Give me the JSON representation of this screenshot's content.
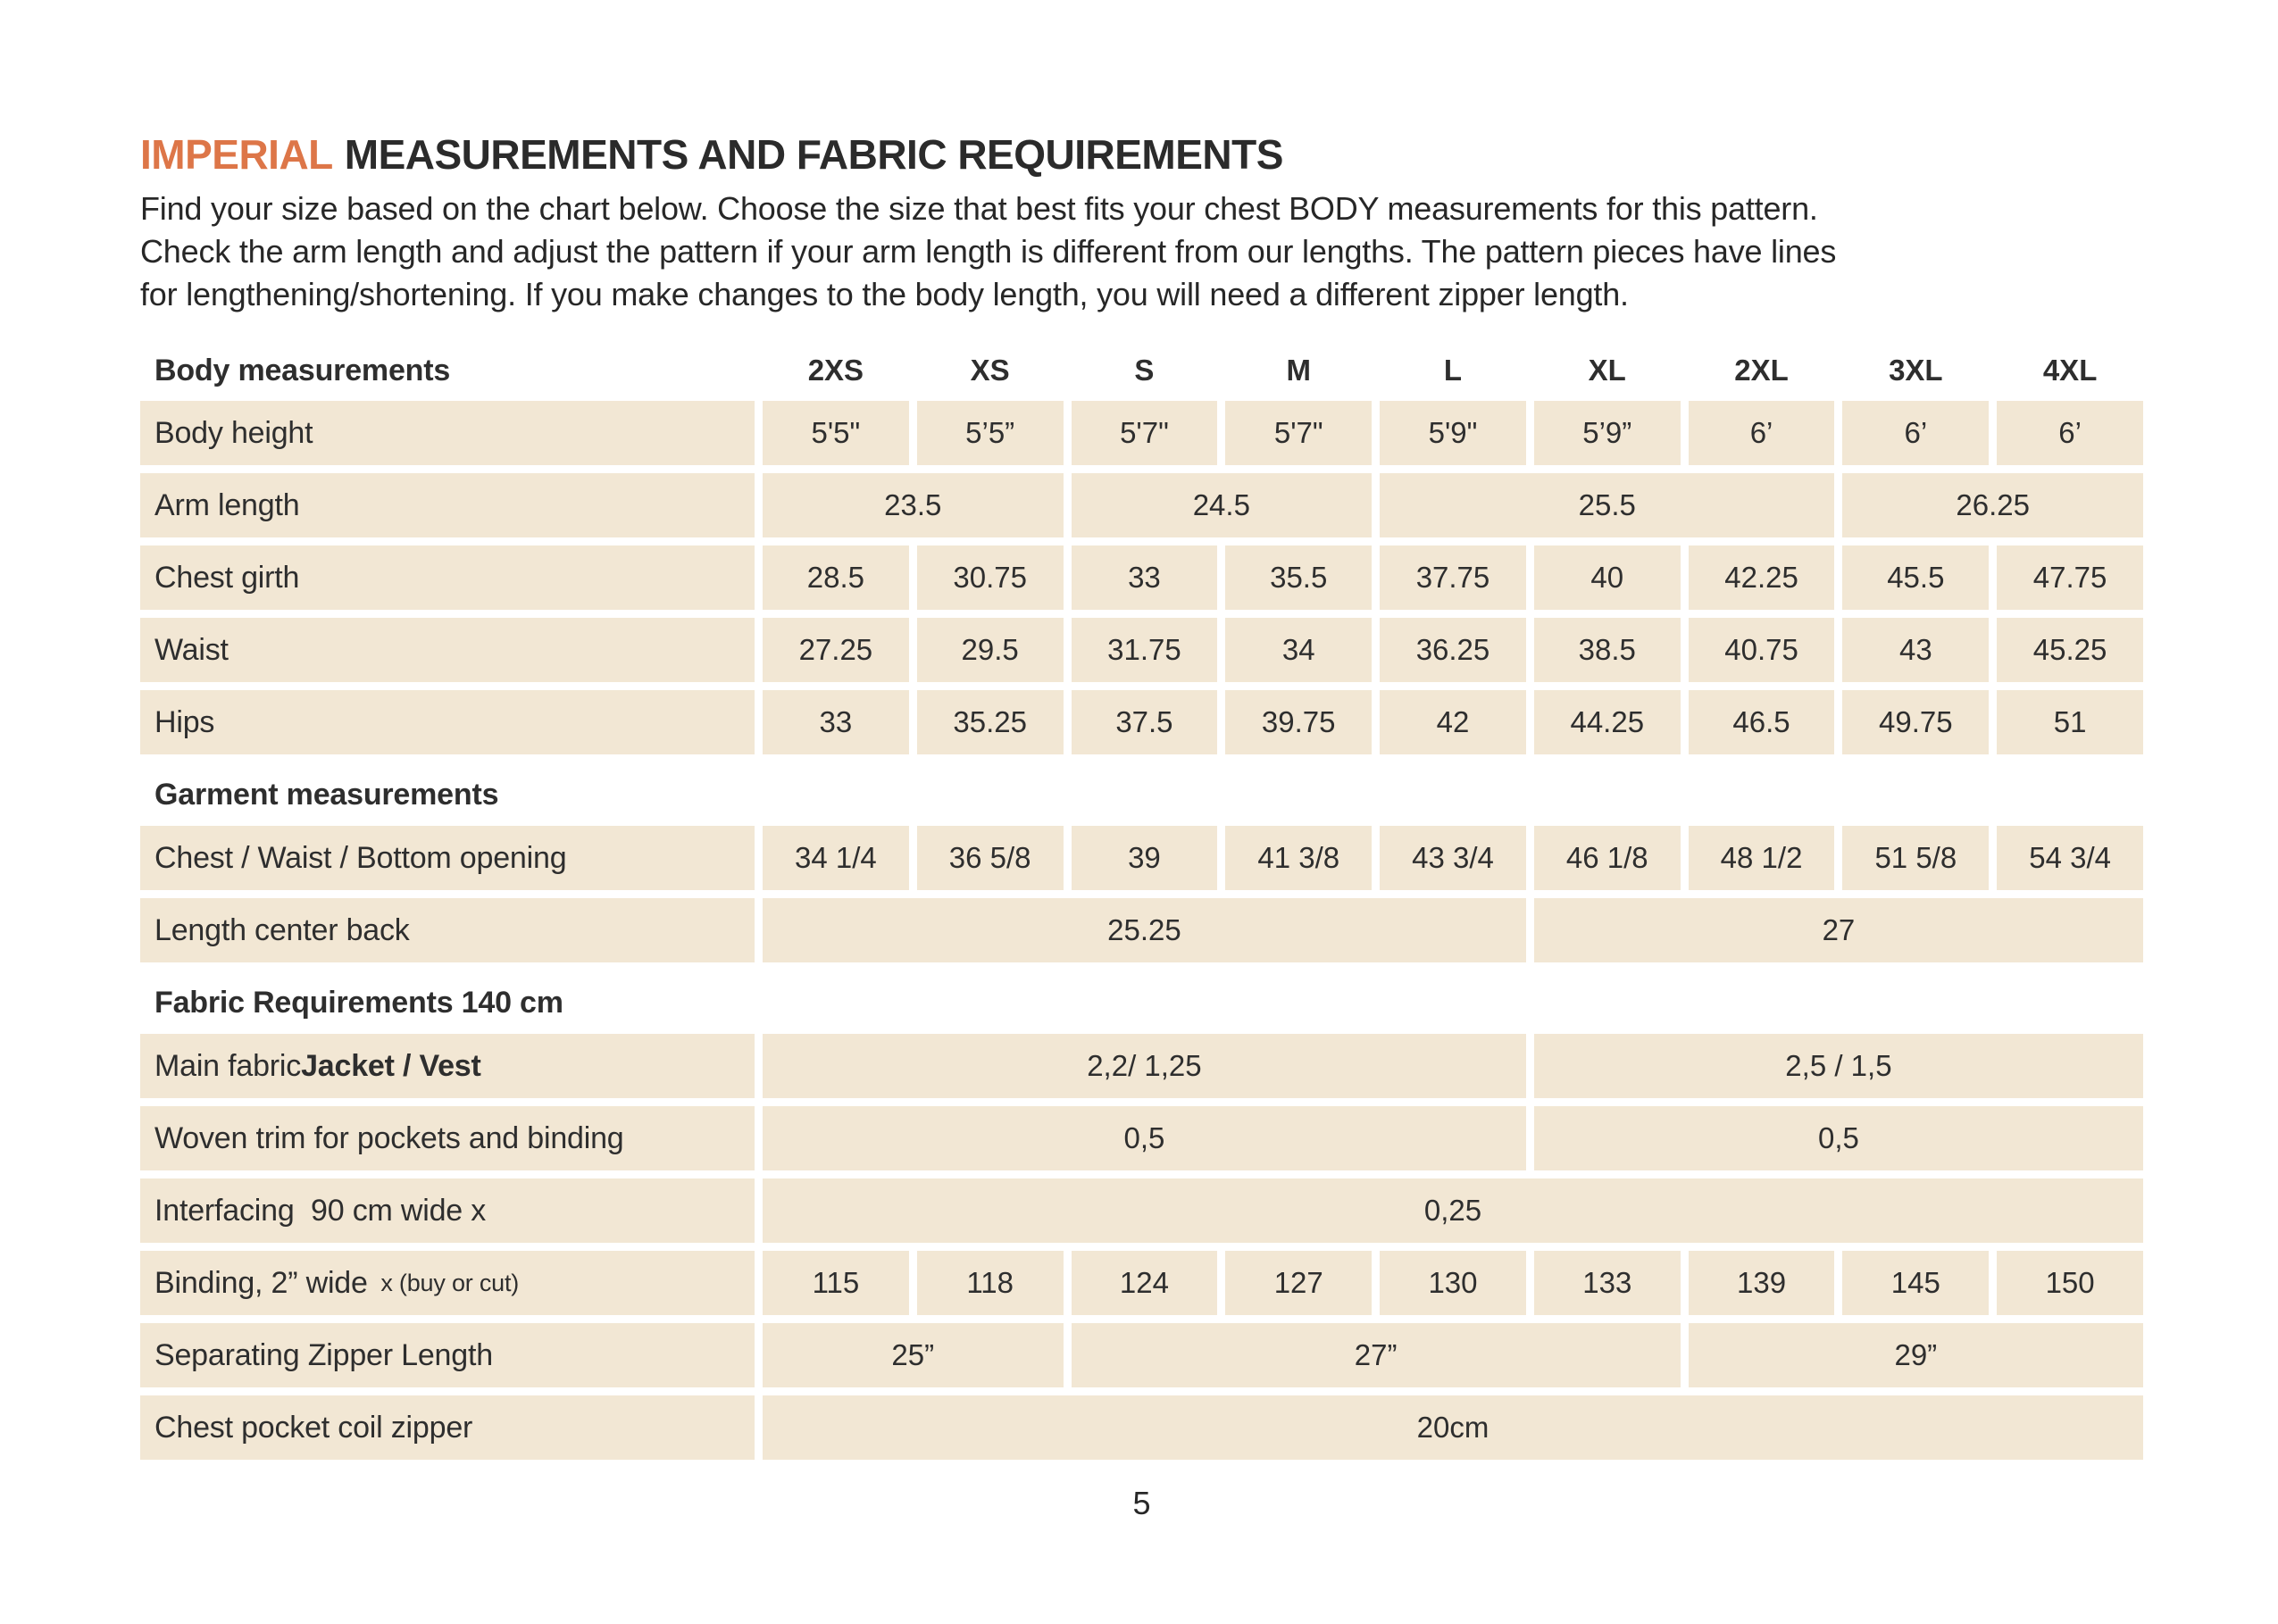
{
  "page": {
    "heading": {
      "accent": "IMPERIAL",
      "rest": "MEASUREMENTS AND FABRIC REQUIREMENTS"
    },
    "intro_lines": [
      "Find your size based on the chart below. Choose the size that best fits your chest BODY measurements for this pattern.",
      "Check the arm length and adjust the pattern if your arm length is different from our lengths. The pattern pieces have lines",
      "for lengthening/shortening. If you make changes to the body length, you will need a different zipper length."
    ],
    "page_number": "5"
  },
  "colors": {
    "accent": "#dd7648",
    "cell_bg": "#f2e7d4",
    "ink": "#2e2e2e"
  },
  "table": {
    "header": {
      "label": "Body measurements",
      "sizes": [
        "2XS",
        "XS",
        "S",
        "M",
        "L",
        "XL",
        "2XL",
        "3XL",
        "4XL"
      ]
    },
    "rows": [
      {
        "type": "data",
        "label": [
          {
            "text": "Body height"
          }
        ],
        "cells": [
          "5'5\"",
          "5’5”",
          "5'7\"",
          "5'7\"",
          "5'9\"",
          "5’9”",
          "6’",
          "6’",
          "6’"
        ]
      },
      {
        "type": "data",
        "label": [
          {
            "text": "Arm length"
          }
        ],
        "cells": [
          {
            "t": "23.5",
            "s": 2
          },
          {
            "t": "24.5",
            "s": 2
          },
          {
            "t": "25.5",
            "s": 3
          },
          {
            "t": "26.25",
            "s": 2
          }
        ]
      },
      {
        "type": "data",
        "label": [
          {
            "text": "Chest girth"
          }
        ],
        "cells": [
          "28.5",
          "30.75",
          "33",
          "35.5",
          "37.75",
          "40",
          "42.25",
          "45.5",
          "47.75"
        ]
      },
      {
        "type": "data",
        "label": [
          {
            "text": "Waist"
          }
        ],
        "cells": [
          "27.25",
          "29.5",
          "31.75",
          "34",
          "36.25",
          "38.5",
          "40.75",
          "43",
          "45.25"
        ]
      },
      {
        "type": "data",
        "label": [
          {
            "text": "Hips"
          }
        ],
        "cells": [
          "33",
          "35.25",
          "37.5",
          "39.75",
          "42",
          "44.25",
          "46.5",
          "49.75",
          "51"
        ]
      },
      {
        "type": "section",
        "label": "Garment measurements"
      },
      {
        "type": "data",
        "label": [
          {
            "text": "Chest / Waist / Bottom opening"
          }
        ],
        "cells": [
          "34 1/4",
          "36 5/8",
          "39",
          "41 3/8",
          "43 3/4",
          "46 1/8",
          "48 1/2",
          "51 5/8",
          "54 3/4"
        ]
      },
      {
        "type": "data",
        "label": [
          {
            "text": "Length center back"
          }
        ],
        "cells": [
          {
            "t": "25.25",
            "s": 5
          },
          {
            "t": "27",
            "s": 4
          }
        ]
      },
      {
        "type": "section",
        "label": "Fabric Requirements 140 cm"
      },
      {
        "type": "data",
        "label": [
          {
            "text": "Main fabric "
          },
          {
            "text": "Jacket / Vest",
            "style": "bold"
          }
        ],
        "cells": [
          {
            "t": "2,2/ 1,25",
            "s": 5
          },
          {
            "t": "2,5 / 1,5",
            "s": 4
          }
        ]
      },
      {
        "type": "data",
        "label": [
          {
            "text": "Woven trim for pockets and binding"
          }
        ],
        "cells": [
          {
            "t": "0,5",
            "s": 5
          },
          {
            "t": "0,5",
            "s": 4
          }
        ]
      },
      {
        "type": "data",
        "label": [
          {
            "text": "Interfacing  90 cm wide x"
          }
        ],
        "cells": [
          {
            "t": "0,25",
            "s": 9
          }
        ]
      },
      {
        "type": "data",
        "label": [
          {
            "text": "Binding, 2” wide"
          },
          {
            "text": "  x (buy or cut)",
            "style": "small"
          }
        ],
        "cells": [
          "115",
          "118",
          "124",
          "127",
          "130",
          "133",
          "139",
          "145",
          "150"
        ]
      },
      {
        "type": "data",
        "label": [
          {
            "text": "Separating Zipper Length"
          }
        ],
        "cells": [
          {
            "t": "25”",
            "s": 2
          },
          {
            "t": "27”",
            "s": 4
          },
          {
            "t": "29”",
            "s": 3
          }
        ]
      },
      {
        "type": "data",
        "label": [
          {
            "text": "Chest pocket coil zipper"
          }
        ],
        "cells": [
          {
            "t": "20cm",
            "s": 9
          }
        ]
      }
    ]
  }
}
